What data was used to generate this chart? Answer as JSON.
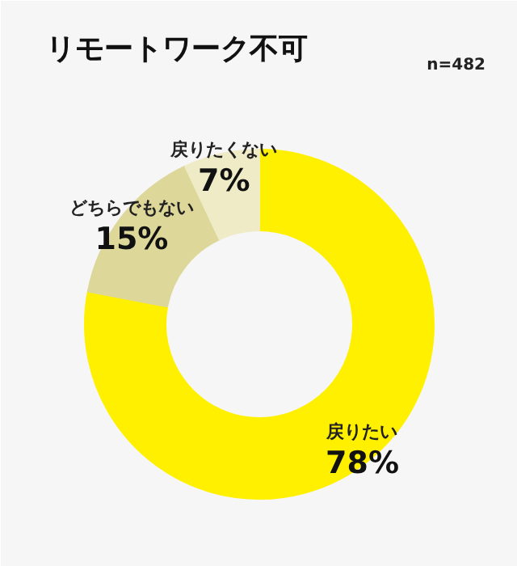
{
  "chart_data": {
    "type": "donut",
    "title": "リモートワーク不可",
    "annotations": [
      "n=482"
    ],
    "categories": [
      "戻りたい",
      "どちらでもない",
      "戻りたくない"
    ],
    "values": [
      78,
      15,
      7
    ],
    "colors": [
      "#fff000",
      "#ddd79a",
      "#efebc6"
    ],
    "value_labels": [
      "78%",
      "15%",
      "7%"
    ]
  }
}
